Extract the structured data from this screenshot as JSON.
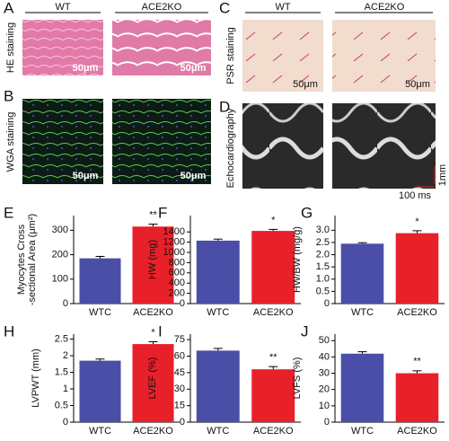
{
  "image_panels": [
    {
      "label": "A",
      "columns": [
        "WT",
        "ACE2KO"
      ],
      "row_label": "HE staining",
      "scale_bars": [
        "50μm",
        "50μm"
      ]
    },
    {
      "label": "B",
      "row_label": "WGA staining",
      "scale_bars": [
        "50μm",
        "50μm"
      ]
    },
    {
      "label": "C",
      "columns": [
        "WT",
        "ACE2KO"
      ],
      "row_label": "PSR staining",
      "scale_bars": [
        "50μm",
        "50μm"
      ]
    },
    {
      "label": "D",
      "row_label": "Echocardiography",
      "scale_bars": [
        "1mm",
        "100 ms"
      ]
    }
  ],
  "chart_data": [
    {
      "type": "bar",
      "panel_label": "E",
      "ylabel": [
        "Myocytes Cross",
        "-sectional Area (μm²)"
      ],
      "categories": [
        "WTC",
        "ACE2KO"
      ],
      "values": [
        185,
        315
      ],
      "errors": [
        8,
        10
      ],
      "colors": [
        "#4b4ea6",
        "#e8202a"
      ],
      "annotations": [
        null,
        "**"
      ],
      "ylim": [
        0,
        360
      ],
      "yticks": [
        0,
        100,
        200,
        300
      ]
    },
    {
      "type": "bar",
      "panel_label": "F",
      "ylabel": [
        "HW (mg)"
      ],
      "categories": [
        "WTC",
        "ACE2KO"
      ],
      "values": [
        1230,
        1420
      ],
      "errors": [
        30,
        30
      ],
      "colors": [
        "#4b4ea6",
        "#e8202a"
      ],
      "annotations": [
        null,
        "*"
      ],
      "ylim": [
        0,
        1720
      ],
      "yticks": [
        0,
        200,
        400,
        600,
        800,
        1000,
        1200,
        1400
      ]
    },
    {
      "type": "bar",
      "panel_label": "G",
      "ylabel": [
        "HW/BW (mg/g)"
      ],
      "categories": [
        "WTC",
        "ACE2KO"
      ],
      "values": [
        2.45,
        2.88
      ],
      "errors": [
        0.04,
        0.1
      ],
      "colors": [
        "#4b4ea6",
        "#e8202a"
      ],
      "annotations": [
        null,
        "*"
      ],
      "ylim": [
        0,
        3.6
      ],
      "yticks": [
        0,
        {
          "value": 0.5,
          "label": "0.5"
        },
        {
          "value": 1,
          "label": "1.0"
        },
        {
          "value": 1.5,
          "label": "1.5"
        },
        {
          "value": 2,
          "label": "2.0"
        },
        {
          "value": 2.5,
          "label": "2.5"
        },
        {
          "value": 3,
          "label": "3.0"
        }
      ]
    },
    {
      "type": "bar",
      "panel_label": "H",
      "ylabel": [
        "LVPWT (mm)"
      ],
      "categories": [
        "WTC",
        "ACE2KO"
      ],
      "values": [
        1.85,
        2.35
      ],
      "errors": [
        0.05,
        0.07
      ],
      "colors": [
        "#4b4ea6",
        "#e8202a"
      ],
      "annotations": [
        null,
        "*"
      ],
      "ylim": [
        0,
        2.65
      ],
      "yticks": [
        0,
        0.5,
        1,
        1.5,
        2,
        2.5
      ]
    },
    {
      "type": "bar",
      "panel_label": "I",
      "ylabel": [
        "LVEF (%)"
      ],
      "categories": [
        "WTC",
        "ACE2KO"
      ],
      "values": [
        65,
        48
      ],
      "errors": [
        2,
        2.5
      ],
      "colors": [
        "#4b4ea6",
        "#e8202a"
      ],
      "annotations": [
        null,
        "**"
      ],
      "ylim": [
        0,
        80
      ],
      "yticks": [
        0,
        15,
        30,
        45,
        60,
        75
      ]
    },
    {
      "type": "bar",
      "panel_label": "J",
      "ylabel": [
        "LVFS (%)"
      ],
      "categories": [
        "WTC",
        "ACE2KO"
      ],
      "values": [
        42,
        30
      ],
      "errors": [
        1.2,
        1.5
      ],
      "colors": [
        "#4b4ea6",
        "#e8202a"
      ],
      "annotations": [
        null,
        "**"
      ],
      "ylim": [
        0,
        54
      ],
      "yticks": [
        0,
        10,
        20,
        30,
        40,
        50
      ]
    }
  ]
}
